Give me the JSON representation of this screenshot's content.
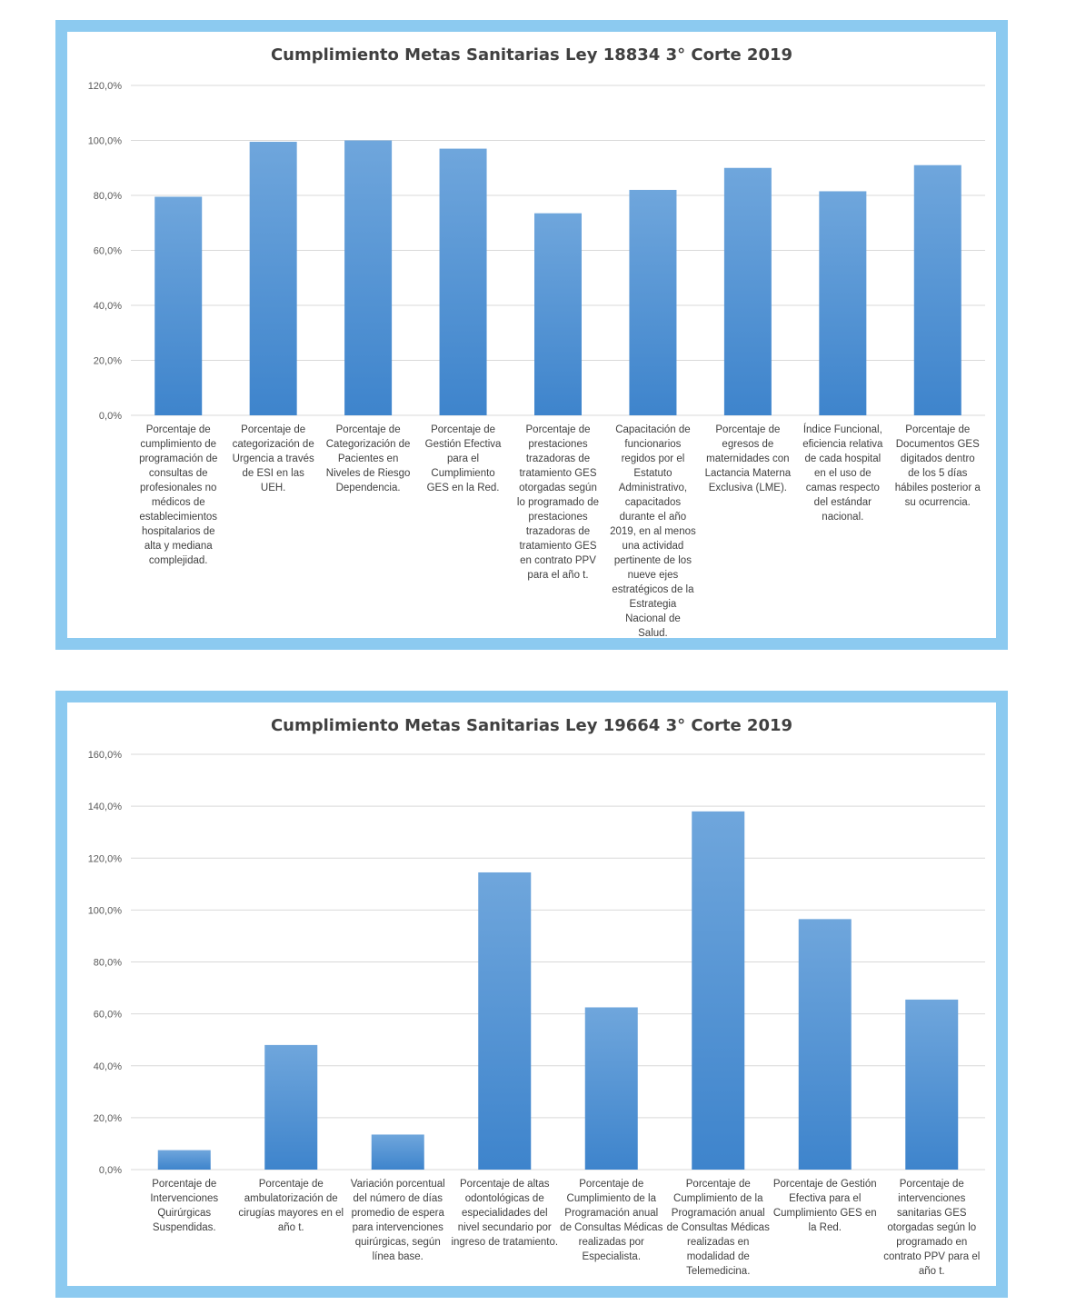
{
  "colors": {
    "frame": "#8ccaf0",
    "bar_top": "#6fa6dc",
    "bar_bottom": "#3e84cc",
    "grid": "#d9d9d9"
  },
  "chart_data": [
    {
      "type": "bar",
      "title": "Cumplimiento  Metas Sanitarias  Ley 18834 3° Corte 2019",
      "ylim": [
        0,
        120
      ],
      "yticks": [
        0,
        20,
        40,
        60,
        80,
        100,
        120
      ],
      "ytick_labels": [
        "0,0%",
        "20,0%",
        "40,0%",
        "60,0%",
        "80,0%",
        "100,0%",
        "120,0%"
      ],
      "grid": true,
      "categories": [
        "Porcentaje de cumplimiento de programación de consultas de profesionales no médicos de establecimientos hospitalarios de alta y mediana complejidad.",
        "Porcentaje de categorización de Urgencia a través de ESI en las UEH.",
        "Porcentaje de Categorización de Pacientes en Niveles de Riesgo Dependencia.",
        "Porcentaje de Gestión Efectiva para el Cumplimiento GES en la Red.",
        "Porcentaje de prestaciones trazadoras de tratamiento GES otorgadas según lo programado de prestaciones trazadoras de tratamiento GES en contrato PPV para el año t.",
        "Capacitación de funcionarios regidos por el Estatuto Administrativo, capacitados durante el año 2019, en al menos una actividad pertinente de los nueve ejes estratégicos de la Estrategia Nacional de Salud.",
        "Porcentaje de egresos de maternidades con Lactancia Materna Exclusiva (LME).",
        "Índice Funcional, eficiencia relativa de cada hospital en el uso de camas respecto del estándar nacional.",
        "Porcentaje de Documentos GES digitados dentro de los 5 días hábiles posterior a su ocurrencia."
      ],
      "values": [
        79.5,
        99.5,
        100.0,
        97.0,
        73.5,
        82.0,
        90.0,
        81.5,
        91.0
      ]
    },
    {
      "type": "bar",
      "title": "Cumplimiento  Metas Sanitarias  Ley 19664 3° Corte 2019",
      "ylim": [
        0,
        160
      ],
      "yticks": [
        0,
        20,
        40,
        60,
        80,
        100,
        120,
        140,
        160
      ],
      "ytick_labels": [
        "0,0%",
        "20,0%",
        "40,0%",
        "60,0%",
        "80,0%",
        "100,0%",
        "120,0%",
        "140,0%",
        "160,0%"
      ],
      "grid": true,
      "categories": [
        "Porcentaje de Intervenciones Quirúrgicas Suspendidas.",
        "Porcentaje de ambulatorización de cirugías mayores en el año t.",
        "Variación porcentual del número de días promedio de espera para intervenciones quirúrgicas, según línea base.",
        "Porcentaje de altas odontológicas de especialidades del nivel secundario por ingreso de tratamiento.",
        "Porcentaje de Cumplimiento de la Programación anual de Consultas Médicas realizadas por Especialista.",
        "Porcentaje de Cumplimiento de la Programación anual de Consultas Médicas realizadas en modalidad de Telemedicina.",
        "Porcentaje de Gestión Efectiva para el Cumplimiento GES en la Red.",
        "Porcentaje de intervenciones sanitarias GES otorgadas según lo programado en contrato PPV para el año t."
      ],
      "values": [
        7.5,
        48.0,
        13.5,
        114.5,
        62.5,
        138.0,
        96.5,
        65.5
      ]
    }
  ]
}
